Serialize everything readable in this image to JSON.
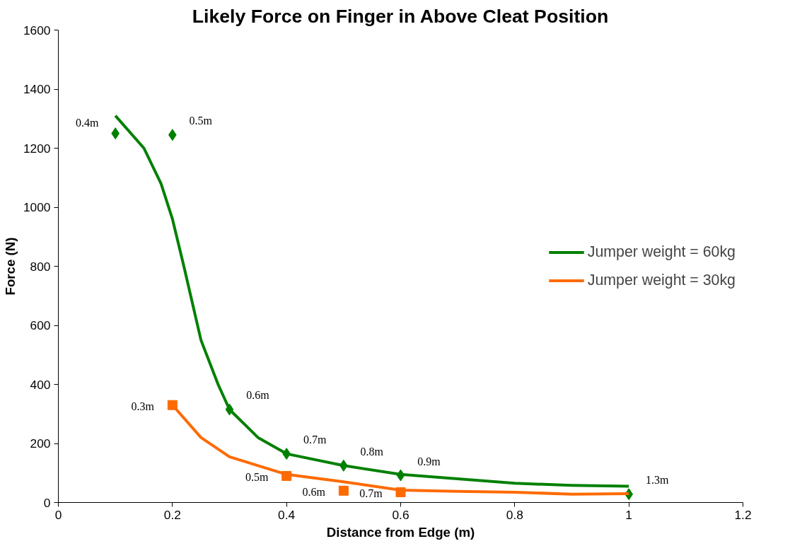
{
  "chart_data": {
    "type": "scatter",
    "title": "Likely Force on Finger in Above Cleat Position",
    "xlabel": "Distance from Edge (m)",
    "ylabel": "Force (N)",
    "xlim": [
      0,
      1.2
    ],
    "xticks": [
      0,
      0.2,
      0.4,
      0.6,
      0.8,
      1,
      1.2
    ],
    "ylim": [
      0,
      1600
    ],
    "yticks": [
      0,
      200,
      400,
      600,
      800,
      1000,
      1200,
      1400,
      1600
    ],
    "grid": false,
    "legend": "right",
    "series": [
      {
        "marker": "diamond",
        "color": "#008000",
        "x": [
          0.1,
          0.2,
          0.3,
          0.4,
          0.5,
          0.6,
          1.0
        ],
        "values": [
          1250,
          1245,
          315,
          165,
          125,
          92,
          28
        ]
      },
      {
        "marker": "square",
        "color": "#ff6a00",
        "x": [
          0.2,
          0.4,
          0.5,
          0.6
        ],
        "values": [
          330,
          90,
          40,
          35
        ]
      },
      {
        "type": "line",
        "name": "Jumper weight = 60kg",
        "color": "#008000",
        "marker": "none",
        "x": [
          0.1,
          0.15,
          0.18,
          0.2,
          0.22,
          0.25,
          0.28,
          0.3,
          0.35,
          0.4,
          0.5,
          0.6,
          0.7,
          0.8,
          0.9,
          1.0
        ],
        "values": [
          1310,
          1200,
          1080,
          960,
          800,
          550,
          400,
          315,
          220,
          165,
          125,
          95,
          80,
          65,
          58,
          55
        ]
      },
      {
        "type": "line",
        "name": "Jumper weight = 30kg",
        "color": "#ff6a00",
        "marker": "none",
        "x": [
          0.2,
          0.25,
          0.3,
          0.35,
          0.4,
          0.5,
          0.6,
          0.7,
          0.8,
          0.9,
          1.0
        ],
        "values": [
          330,
          220,
          155,
          125,
          95,
          70,
          42,
          38,
          35,
          28,
          30
        ]
      }
    ],
    "annotations": [
      {
        "text": "0.4m",
        "x": 0.1,
        "y": 1250
      },
      {
        "text": "0.5m",
        "x": 0.2,
        "y": 1245
      },
      {
        "text": "0.6m",
        "x": 0.3,
        "y": 315
      },
      {
        "text": "0.7m",
        "x": 0.4,
        "y": 165
      },
      {
        "text": "0.8m",
        "x": 0.5,
        "y": 125
      },
      {
        "text": "0.9m",
        "x": 0.6,
        "y": 92
      },
      {
        "text": "1.3m",
        "x": 1.0,
        "y": 28
      },
      {
        "text": "0.3m",
        "x": 0.2,
        "y": 330
      },
      {
        "text": "0.5m",
        "x": 0.4,
        "y": 90
      },
      {
        "text": "0.6m",
        "x": 0.5,
        "y": 40
      },
      {
        "text": "0.7m",
        "x": 0.6,
        "y": 35
      }
    ]
  }
}
